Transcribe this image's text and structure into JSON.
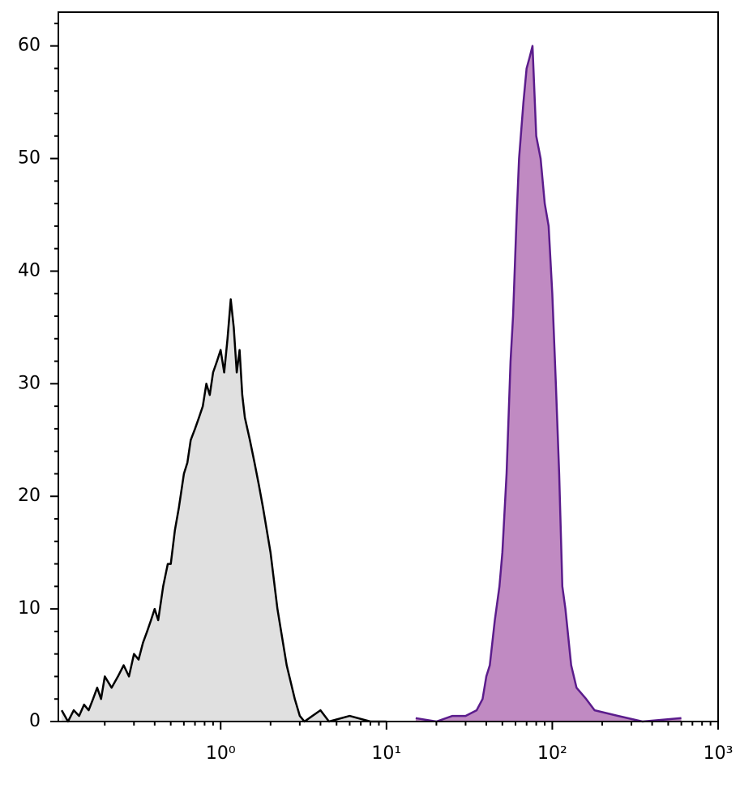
{
  "chart_data": {
    "type": "histogram-area",
    "xscale": "log",
    "xlim": [
      0.105,
      1000
    ],
    "ylim": [
      0,
      63
    ],
    "xticks": [
      {
        "value": 1,
        "label": "10⁰"
      },
      {
        "value": 10,
        "label": "10¹"
      },
      {
        "value": 100,
        "label": "10²"
      },
      {
        "value": 1000,
        "label": "10³"
      }
    ],
    "xminorticks": [
      0.2,
      0.3,
      0.4,
      0.5,
      0.6,
      0.7,
      0.8,
      0.9,
      2,
      3,
      4,
      5,
      6,
      7,
      8,
      9,
      20,
      30,
      40,
      50,
      60,
      70,
      80,
      90,
      200,
      300,
      400,
      500,
      600,
      700,
      800,
      900
    ],
    "yticks": [
      0,
      10,
      20,
      30,
      40,
      50,
      60
    ],
    "yminorticks": [
      2,
      4,
      6,
      8,
      12,
      14,
      16,
      18,
      22,
      24,
      26,
      28,
      32,
      34,
      36,
      38,
      42,
      44,
      46,
      48,
      52,
      54,
      56,
      58,
      62
    ],
    "series": [
      {
        "color": "#000000",
        "fill": "#e0e0e0",
        "x": [
          0.11,
          0.12,
          0.13,
          0.14,
          0.15,
          0.16,
          0.17,
          0.18,
          0.19,
          0.2,
          0.22,
          0.24,
          0.26,
          0.28,
          0.3,
          0.32,
          0.34,
          0.36,
          0.38,
          0.4,
          0.42,
          0.45,
          0.48,
          0.5,
          0.53,
          0.56,
          0.6,
          0.63,
          0.66,
          0.7,
          0.74,
          0.78,
          0.82,
          0.86,
          0.9,
          0.95,
          1.0,
          1.05,
          1.1,
          1.15,
          1.2,
          1.25,
          1.3,
          1.35,
          1.4,
          1.5,
          1.6,
          1.7,
          1.8,
          2.0,
          2.2,
          2.5,
          2.8,
          3.0,
          3.2,
          4,
          4.5,
          6,
          8,
          10
        ],
        "values": [
          1,
          0,
          1,
          0.5,
          1.5,
          1,
          2,
          3,
          2,
          4,
          3,
          4,
          5,
          4,
          6,
          5.5,
          7,
          8,
          9,
          10,
          9,
          12,
          14,
          14,
          17,
          19,
          22,
          23,
          25,
          26,
          27,
          28,
          30,
          29,
          31,
          32,
          33,
          31,
          34,
          37.5,
          35,
          31,
          33,
          29,
          27,
          25,
          23,
          21,
          19,
          15,
          10,
          5,
          2,
          0.5,
          0,
          1,
          0,
          0.5,
          0,
          0
        ]
      },
      {
        "color": "#5b1c8c",
        "fill": "#c08ac2",
        "x": [
          15,
          20,
          25,
          30,
          35,
          38,
          40,
          42,
          45,
          48,
          50,
          53,
          56,
          58,
          61,
          63,
          67,
          70,
          73,
          76,
          80,
          85,
          90,
          95,
          100,
          105,
          110,
          115,
          120,
          130,
          140,
          160,
          180,
          250,
          350,
          600
        ],
        "values": [
          0.3,
          0,
          0.5,
          0.5,
          1,
          2,
          4,
          5,
          9,
          12,
          15,
          22,
          32,
          36,
          45,
          50,
          55,
          58,
          59,
          60,
          52,
          50,
          46,
          44,
          38,
          30,
          22,
          12,
          10,
          5,
          3,
          2,
          1,
          0.5,
          0,
          0.3
        ]
      }
    ]
  }
}
